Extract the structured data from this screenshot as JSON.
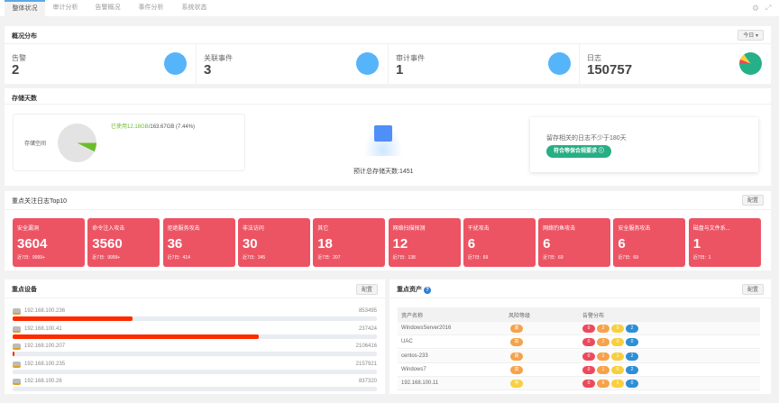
{
  "tabs": [
    {
      "label": "整体状况",
      "active": true
    },
    {
      "label": "审计分析"
    },
    {
      "label": "告警概况"
    },
    {
      "label": "事件分析"
    },
    {
      "label": "系统状态"
    }
  ],
  "toolbar_icons": [
    "gear-icon",
    "expand-icon"
  ],
  "overview": {
    "title": "概况分布",
    "range_select": "今日",
    "stats": [
      {
        "label": "告警",
        "value": "2"
      },
      {
        "label": "关联事件",
        "value": "3"
      },
      {
        "label": "审计事件",
        "value": "1"
      },
      {
        "label": "日志",
        "value": "150757"
      }
    ]
  },
  "storage": {
    "title": "存储天数",
    "space_label": "存储空间",
    "used_text": "已使用12.18GB",
    "total_text": "/163.67GB (7.44%)",
    "used_percent": 7.44,
    "estimate": "预计总存储天数:1451",
    "tip": "留存相关的日志不少于180天",
    "badge": "符合等保合规要求",
    "colors": {
      "used": "#6cbd2c",
      "free": "#e3e3e3"
    }
  },
  "top10": {
    "title": "重点关注日志Top10",
    "config_label": "配置",
    "week_label": "近7日:",
    "cards": [
      {
        "name": "安全漏洞",
        "value": "3604",
        "week": "9999+"
      },
      {
        "name": "命令注入攻击",
        "value": "3560",
        "week": "9999+"
      },
      {
        "name": "拒绝服务攻击",
        "value": "36",
        "week": "414"
      },
      {
        "name": "非法访问",
        "value": "30",
        "week": "345"
      },
      {
        "name": "其它",
        "value": "18",
        "week": "207"
      },
      {
        "name": "网络扫描探测",
        "value": "12",
        "week": "138"
      },
      {
        "name": "干扰攻击",
        "value": "6",
        "week": "69"
      },
      {
        "name": "网络钓鱼攻击",
        "value": "6",
        "week": "69"
      },
      {
        "name": "安全服务攻击",
        "value": "6",
        "week": "69"
      },
      {
        "name": "磁盘与文件系...",
        "value": "1",
        "week": "1"
      }
    ]
  },
  "devices": {
    "title": "重点设备",
    "config_label": "配置",
    "items": [
      {
        "ip": "192.168.100.236",
        "count": "853495",
        "percent": 33
      },
      {
        "ip": "192.168.100.41",
        "count": "237424",
        "percent": 67.5
      },
      {
        "ip": "192.168.100.207",
        "count": "2106416",
        "percent": 0.5
      },
      {
        "ip": "192.168.100.235",
        "count": "2157921",
        "percent": 0
      },
      {
        "ip": "192.168.100.26",
        "count": "837320",
        "percent": 0
      }
    ]
  },
  "assets": {
    "title": "重点资产",
    "config_label": "配置",
    "headers": [
      "资产名称",
      "风险等级",
      "告警分布"
    ],
    "rows": [
      {
        "name": "WindowsServer2016",
        "risk": "高",
        "alerts": [
          "0",
          "2",
          "0",
          "2"
        ]
      },
      {
        "name": "UAC",
        "risk": "高",
        "alerts": [
          "0",
          "2",
          "0",
          "0"
        ]
      },
      {
        "name": "centos-233",
        "risk": "高",
        "alerts": [
          "0",
          "1",
          "1",
          "2"
        ]
      },
      {
        "name": "Windows7",
        "risk": "高",
        "alerts": [
          "0",
          "1",
          "0",
          "2"
        ]
      },
      {
        "name": "192.168.100.11",
        "risk": "中",
        "alerts": [
          "0",
          "0",
          "1",
          "0"
        ]
      }
    ],
    "colors": {
      "high": "#f5a24b",
      "mid": "#f7cf3f",
      "alerts": [
        "#ec4a5c",
        "#f5a24b",
        "#f7cf3f",
        "#2d8fd5"
      ]
    }
  }
}
